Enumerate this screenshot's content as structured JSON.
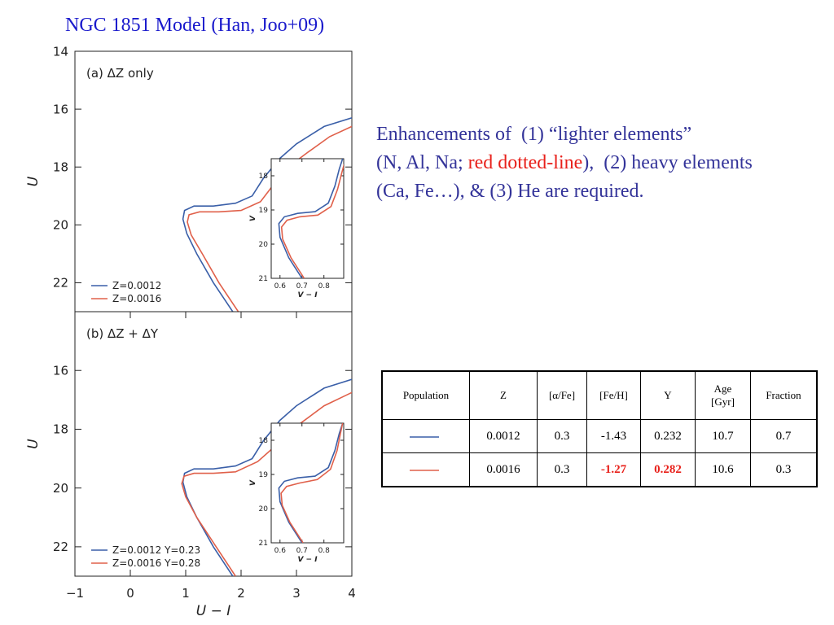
{
  "title": "NGC 1851 Model (Han, Joo+09)",
  "body": [
    [
      "Enhancements of  (1) “lighter elements”"
    ],
    [
      "(N, Al, Na; ",
      "red dotted-line",
      "),  (2) heavy elements"
    ],
    [
      "(Ca, Fe…), & (3) He are required."
    ]
  ],
  "table": {
    "header": [
      "Population",
      "Z",
      "[α/Fe]",
      "[Fe/H]",
      "Y",
      "Age [Gyr]",
      "Fraction"
    ],
    "rows": [
      {
        "line_color": "#3a5fa8",
        "cells": [
          "0.0012",
          "0.3",
          "-1.43",
          "0.232",
          "10.7",
          "0.7"
        ]
      },
      {
        "line_color": "#e0604a",
        "cells": [
          "0.0016",
          "0.3",
          "-1.27",
          "0.282",
          "10.6",
          "0.3"
        ]
      }
    ]
  },
  "chart_data": [
    {
      "type": "line",
      "panel_label": "(a) ΔZ only",
      "ylabel": "U",
      "xlim": [
        -1,
        4
      ],
      "ylim": [
        23,
        14
      ],
      "yticks": [
        14,
        16,
        18,
        20,
        22
      ],
      "series": [
        {
          "name": "Z=0.0012",
          "color": "#3a5fa8",
          "x": [
            1.85,
            1.5,
            1.2,
            1.02,
            0.95,
            0.98,
            1.15,
            1.5,
            1.9,
            2.2,
            2.4,
            2.7,
            3.0,
            3.5,
            4.0
          ],
          "values": [
            23,
            22,
            21,
            20.3,
            19.8,
            19.5,
            19.35,
            19.35,
            19.25,
            19.0,
            18.4,
            17.7,
            17.2,
            16.6,
            16.3
          ]
        },
        {
          "name": "Z=0.0016",
          "color": "#e0604a",
          "x": [
            1.95,
            1.6,
            1.3,
            1.1,
            1.03,
            1.06,
            1.25,
            1.6,
            2.0,
            2.35,
            2.55,
            2.85,
            3.2,
            3.6,
            4.0
          ],
          "values": [
            23,
            22,
            21,
            20.35,
            19.9,
            19.65,
            19.55,
            19.55,
            19.5,
            19.2,
            18.7,
            18.0,
            17.5,
            16.95,
            16.6
          ]
        }
      ]
    },
    {
      "type": "line",
      "panel_label": "(b) ΔZ + ΔY",
      "xlabel": "U − I",
      "ylabel": "U",
      "xlim": [
        -1,
        4
      ],
      "ylim": [
        23,
        14
      ],
      "yticks": [
        16,
        18,
        20,
        22
      ],
      "xticks": [
        {
          "value": -1,
          "label": "−1"
        },
        0,
        1,
        2,
        3,
        4
      ],
      "series": [
        {
          "name": "Z=0.0012 Y=0.23",
          "color": "#3a5fa8",
          "x": [
            1.85,
            1.5,
            1.2,
            1.02,
            0.95,
            0.98,
            1.15,
            1.5,
            1.9,
            2.2,
            2.4,
            2.7,
            3.0,
            3.5,
            4.0
          ],
          "values": [
            23,
            22,
            21,
            20.3,
            19.8,
            19.5,
            19.35,
            19.35,
            19.25,
            19.0,
            18.4,
            17.7,
            17.2,
            16.6,
            16.3
          ]
        },
        {
          "name": "Z=0.0016 Y=0.28",
          "color": "#e0604a",
          "x": [
            1.9,
            1.55,
            1.2,
            1.0,
            0.93,
            0.97,
            1.15,
            1.5,
            1.9,
            2.3,
            2.6,
            3.0,
            3.5,
            4.0
          ],
          "values": [
            23,
            22,
            21,
            20.3,
            19.85,
            19.6,
            19.5,
            19.5,
            19.45,
            19.1,
            18.6,
            17.9,
            17.2,
            16.75
          ]
        }
      ]
    },
    {
      "type": "line",
      "xlabel": "V − I",
      "ylabel": "V",
      "xlim": [
        0.56,
        0.89
      ],
      "ylim": [
        21,
        17.5
      ],
      "xticks": [
        0.6,
        0.7,
        0.8
      ],
      "yticks": [
        18,
        19,
        20,
        21
      ],
      "series": [
        {
          "color": "#3a5fa8",
          "x": [
            0.7,
            0.64,
            0.6,
            0.595,
            0.62,
            0.68,
            0.76,
            0.82,
            0.85,
            0.87,
            0.885
          ],
          "values": [
            21,
            20.4,
            19.8,
            19.4,
            19.2,
            19.1,
            19.05,
            18.8,
            18.3,
            17.8,
            17.5
          ]
        },
        {
          "color": "#e0604a",
          "x": [
            0.71,
            0.65,
            0.612,
            0.607,
            0.632,
            0.69,
            0.772,
            0.832,
            0.862,
            0.882,
            0.895
          ],
          "values": [
            21,
            20.4,
            19.85,
            19.5,
            19.3,
            19.2,
            19.15,
            18.9,
            18.4,
            17.9,
            17.6
          ]
        }
      ]
    },
    {
      "type": "line",
      "xlabel": "V − I",
      "ylabel": "V",
      "xlim": [
        0.56,
        0.89
      ],
      "ylim": [
        21,
        17.5
      ],
      "xticks": [
        0.6,
        0.7,
        0.8
      ],
      "yticks": [
        18,
        19,
        20,
        21
      ],
      "series": [
        {
          "color": "#3a5fa8",
          "x": [
            0.7,
            0.64,
            0.6,
            0.595,
            0.62,
            0.68,
            0.76,
            0.82,
            0.85,
            0.87,
            0.885
          ],
          "values": [
            21,
            20.4,
            19.8,
            19.4,
            19.2,
            19.1,
            19.05,
            18.8,
            18.3,
            17.8,
            17.5
          ]
        },
        {
          "color": "#e0604a",
          "x": [
            0.705,
            0.645,
            0.61,
            0.605,
            0.63,
            0.69,
            0.77,
            0.83,
            0.86,
            0.875,
            0.885
          ],
          "values": [
            21,
            20.4,
            19.9,
            19.55,
            19.35,
            19.25,
            19.15,
            18.85,
            18.3,
            17.8,
            17.5
          ]
        }
      ]
    }
  ]
}
